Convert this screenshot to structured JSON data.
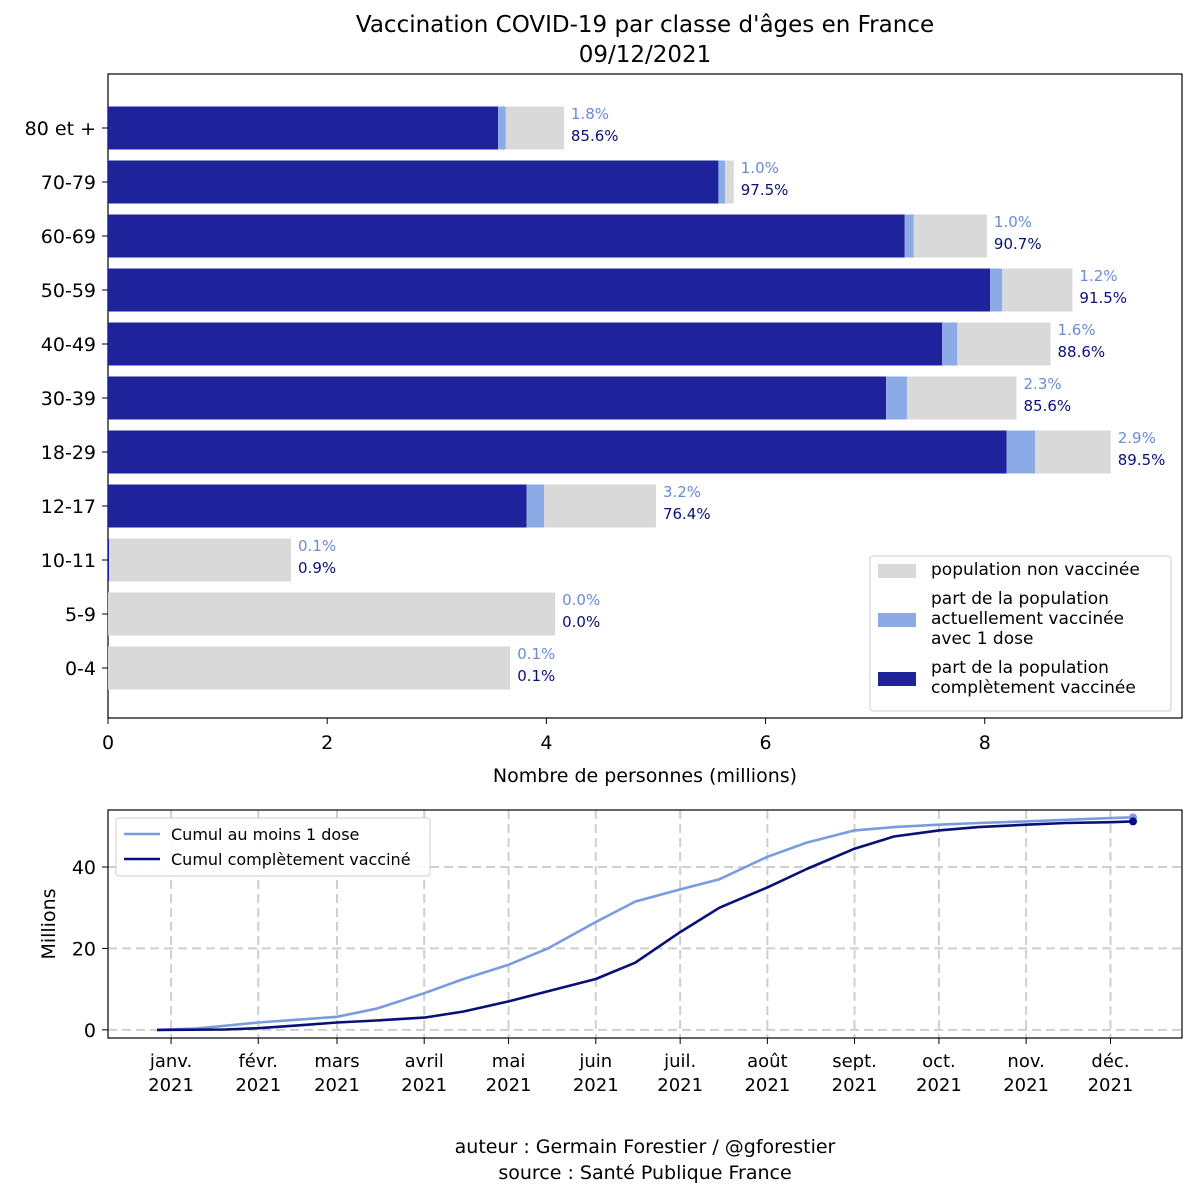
{
  "figure": {
    "title": "Vaccination COVID-19 par classe d'âges en France",
    "date": "09/12/2021",
    "credits": [
      "auteur : Germain Forestier / @gforestier",
      "source : Santé Publique France"
    ]
  },
  "colors": {
    "unvaccinated": "#d9d9d9",
    "one_dose": "#8caae6",
    "complete": "#1f239b",
    "line_one_dose": "#7b9be0",
    "line_complete": "#0a0f78",
    "label_one_dose": "#6a8bd6",
    "label_complete": "#0b0f7a"
  },
  "chart_data": [
    {
      "type": "bar",
      "orientation": "horizontal",
      "stacked": true,
      "xlabel": "Nombre de personnes (millions)",
      "xlim": [
        0,
        9.8
      ],
      "xticks": [
        0,
        2,
        4,
        6,
        8
      ],
      "categories": [
        "80 et +",
        "70-79",
        "60-69",
        "50-59",
        "40-49",
        "30-39",
        "18-29",
        "12-17",
        "10-11",
        "5-9",
        "0-4"
      ],
      "series": [
        {
          "name": "part de la population complètement vaccinée",
          "key": "complete",
          "values": [
            3.56,
            5.57,
            7.27,
            8.05,
            7.61,
            7.1,
            8.2,
            3.82,
            0.01,
            0.0,
            0.0
          ]
        },
        {
          "name": "part de la population actuellement vaccinée avec 1 dose",
          "key": "one_dose",
          "values": [
            0.07,
            0.06,
            0.08,
            0.11,
            0.14,
            0.19,
            0.26,
            0.16,
            0.0,
            0.0,
            0.0
          ]
        },
        {
          "name": "population non vaccinée",
          "key": "unvaccinated",
          "values": [
            0.53,
            0.08,
            0.67,
            0.64,
            0.85,
            1.0,
            0.69,
            1.02,
            1.66,
            4.08,
            3.67
          ]
        }
      ],
      "one_dose_pct_labels": [
        "1.8%",
        "1.0%",
        "1.0%",
        "1.2%",
        "1.6%",
        "2.3%",
        "2.9%",
        "3.2%",
        "0.1%",
        "0.0%",
        "0.1%"
      ],
      "complete_pct_labels": [
        "85.6%",
        "97.5%",
        "90.7%",
        "91.5%",
        "88.6%",
        "85.6%",
        "89.5%",
        "76.4%",
        "0.9%",
        "0.0%",
        "0.1%"
      ],
      "legend": {
        "placement": "lower-right",
        "entries": [
          {
            "key": "unvaccinated",
            "lines": [
              "population non vaccinée"
            ]
          },
          {
            "key": "one_dose",
            "lines": [
              "part de la population",
              "actuellement vaccinée",
              "avec 1 dose"
            ]
          },
          {
            "key": "complete",
            "lines": [
              "part de la population",
              "complètement vaccinée"
            ]
          }
        ]
      }
    },
    {
      "type": "line",
      "ylabel": "Millions",
      "ylim": [
        -2,
        54
      ],
      "yticks": [
        0,
        20,
        40
      ],
      "grid": true,
      "x_start": "2020-12-27",
      "x_end": "2021-12-09",
      "xticks": [
        {
          "date": "2021-01-01",
          "label": [
            "janv.",
            "2021"
          ]
        },
        {
          "date": "2021-02-01",
          "label": [
            "févr.",
            "2021"
          ]
        },
        {
          "date": "2021-03-01",
          "label": [
            "mars",
            "2021"
          ]
        },
        {
          "date": "2021-04-01",
          "label": [
            "avril",
            "2021"
          ]
        },
        {
          "date": "2021-05-01",
          "label": [
            "mai",
            "2021"
          ]
        },
        {
          "date": "2021-06-01",
          "label": [
            "juin",
            "2021"
          ]
        },
        {
          "date": "2021-07-01",
          "label": [
            "juil.",
            "2021"
          ]
        },
        {
          "date": "2021-08-01",
          "label": [
            "août",
            "2021"
          ]
        },
        {
          "date": "2021-09-01",
          "label": [
            "sept.",
            "2021"
          ]
        },
        {
          "date": "2021-10-01",
          "label": [
            "oct.",
            "2021"
          ]
        },
        {
          "date": "2021-11-01",
          "label": [
            "nov.",
            "2021"
          ]
        },
        {
          "date": "2021-12-01",
          "label": [
            "déc.",
            "2021"
          ]
        }
      ],
      "legend": {
        "placement": "top-left"
      },
      "series": [
        {
          "name": "Cumul au moins 1 dose",
          "key": "line_one_dose",
          "x": [
            "2020-12-27",
            "2021-01-10",
            "2021-01-20",
            "2021-02-01",
            "2021-02-15",
            "2021-03-01",
            "2021-03-15",
            "2021-04-01",
            "2021-04-15",
            "2021-05-01",
            "2021-05-15",
            "2021-06-01",
            "2021-06-15",
            "2021-07-01",
            "2021-07-15",
            "2021-08-01",
            "2021-08-15",
            "2021-09-01",
            "2021-09-15",
            "2021-10-01",
            "2021-10-15",
            "2021-11-01",
            "2021-11-15",
            "2021-12-01",
            "2021-12-09"
          ],
          "y": [
            0,
            0.3,
            1.0,
            1.8,
            2.5,
            3.2,
            5.2,
            9.0,
            12.5,
            16.0,
            20.0,
            26.5,
            31.5,
            34.5,
            37.0,
            42.5,
            46.0,
            49.0,
            49.8,
            50.4,
            50.8,
            51.2,
            51.6,
            52.0,
            52.2
          ]
        },
        {
          "name": "Cumul complètement vacciné",
          "key": "line_complete",
          "x": [
            "2020-12-27",
            "2021-01-20",
            "2021-02-01",
            "2021-02-15",
            "2021-03-01",
            "2021-03-15",
            "2021-04-01",
            "2021-04-15",
            "2021-05-01",
            "2021-05-15",
            "2021-06-01",
            "2021-06-15",
            "2021-07-01",
            "2021-07-15",
            "2021-08-01",
            "2021-08-15",
            "2021-09-01",
            "2021-09-15",
            "2021-10-01",
            "2021-10-15",
            "2021-11-01",
            "2021-11-15",
            "2021-12-01",
            "2021-12-09"
          ],
          "y": [
            0,
            0.1,
            0.4,
            1.1,
            1.8,
            2.3,
            3.0,
            4.5,
            7.0,
            9.5,
            12.5,
            16.5,
            24.0,
            30.0,
            35.0,
            39.5,
            44.5,
            47.5,
            49.0,
            49.8,
            50.4,
            50.8,
            51.0,
            51.2
          ]
        }
      ]
    }
  ]
}
